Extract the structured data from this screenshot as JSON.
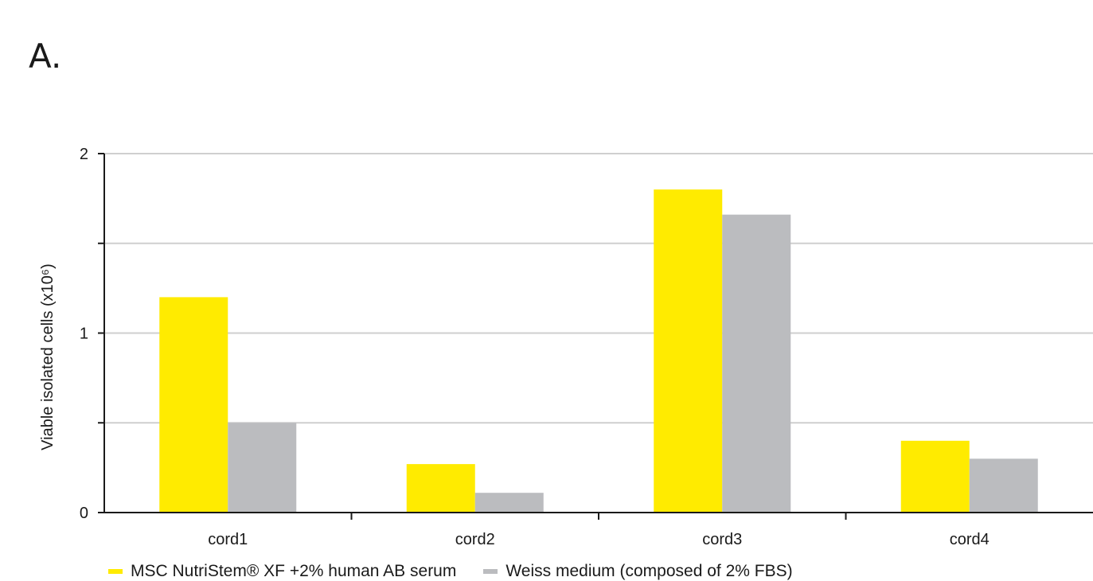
{
  "panel_label": "A.",
  "colors": {
    "series1": "#FFEB00",
    "series2": "#BBBCBF",
    "grid": "#cfcfcf",
    "axis": "#1a1a1a"
  },
  "chart_data": {
    "type": "bar",
    "categories": [
      "cord1",
      "cord2",
      "cord3",
      "cord4"
    ],
    "series": [
      {
        "name": "MSC NutriStem® XF +2% human AB serum",
        "values": [
          1.2,
          0.27,
          1.8,
          0.4
        ]
      },
      {
        "name": "Weiss medium (composed of 2% FBS)",
        "values": [
          0.5,
          0.11,
          1.66,
          0.3
        ]
      }
    ],
    "title": "",
    "xlabel": "",
    "ylabel": "Viable isolated cells (x10⁶)",
    "ylim": [
      0,
      2
    ],
    "yticks": [
      0,
      0.5,
      1,
      1.5,
      2
    ],
    "ytick_labels": [
      "0",
      "",
      "1",
      "",
      "2"
    ],
    "grid": true,
    "legend_position": "bottom"
  }
}
